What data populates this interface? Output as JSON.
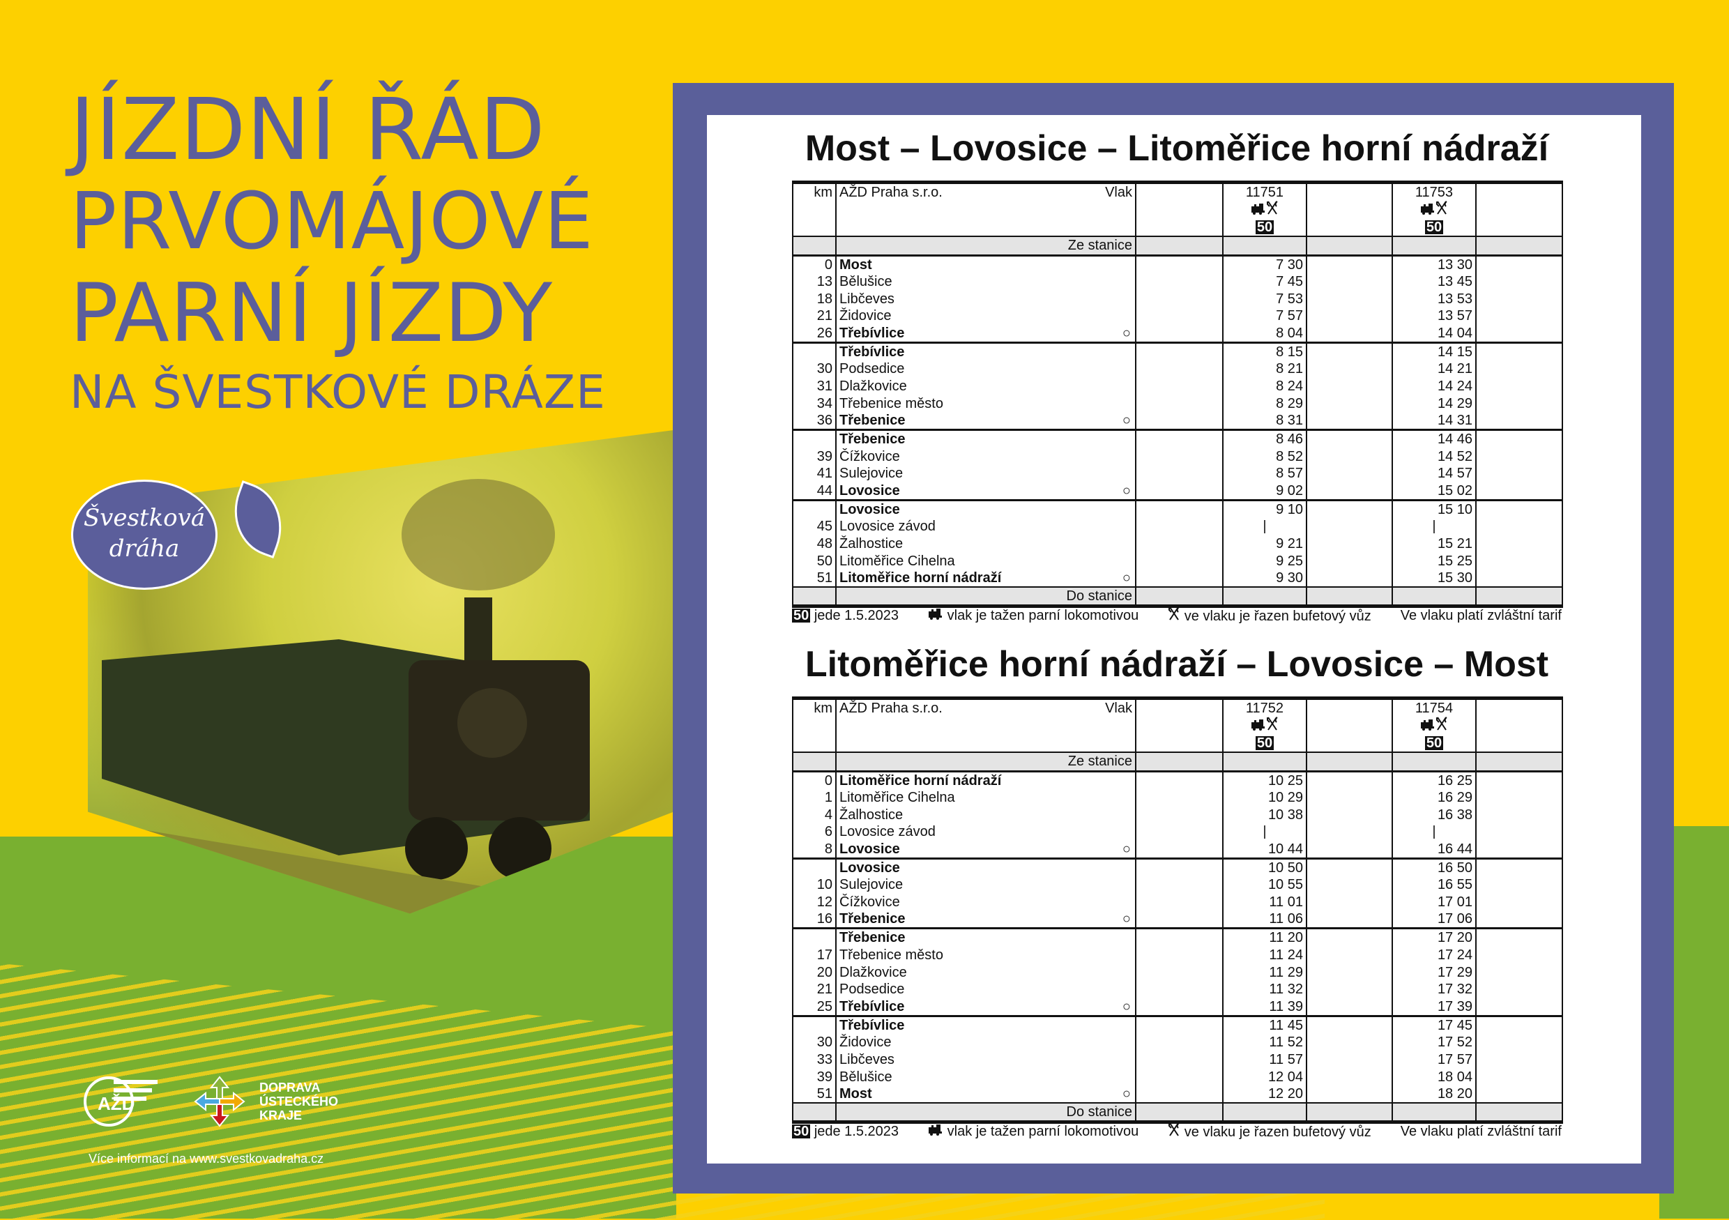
{
  "poster": {
    "title_lines": [
      "JÍZDNÍ ŘÁD",
      "PRVOMÁJOVÉ",
      "PARNÍ JÍZDY"
    ],
    "subtitle": "NA ŠVESTKOVÉ DRÁZE",
    "logo_text": "Švestková dráha",
    "azd_logo": "AŽD",
    "dus_logo": [
      "DOPRAVA",
      "ÚSTECKÉHO",
      "KRAJE"
    ],
    "web": "Více informací na www.svestkovadraha.cz",
    "colors": {
      "yellow": "#fdd000",
      "green": "#79b030",
      "purple": "#5a5f9a"
    }
  },
  "legend": {
    "badge": "50",
    "badge_text": "jede 1.5.2023",
    "loco_icon": "steam-locomotive-icon",
    "loco_text": "vlak je tažen parní lokomotivou",
    "buffet_icon": "cutlery-icon",
    "buffet_text": "ve vlaku je řazen bufetový vůz",
    "tariff": "Ve vlaku platí zvláštní tarif"
  },
  "timetables": [
    {
      "title": "Most – Lovosice – Litoměřice horní nádraží",
      "km": "km",
      "operator": "AŽD Praha s.r.o.",
      "vlak": "Vlak",
      "from": "Ze stanice",
      "to": "Do stanice",
      "trains": [
        {
          "number": "11751",
          "badge": "50"
        },
        {
          "number": "11753",
          "badge": "50"
        }
      ],
      "blocks": [
        [
          [
            "0",
            "Most",
            1,
            "",
            [
              "7 30",
              "13 30"
            ]
          ],
          [
            "13",
            "Bělušice",
            0,
            "",
            [
              "7 45",
              "13 45"
            ]
          ],
          [
            "18",
            "Libčeves",
            0,
            "",
            [
              "7 53",
              "13 53"
            ]
          ],
          [
            "21",
            "Židovice",
            0,
            "",
            [
              "7 57",
              "13 57"
            ]
          ],
          [
            "26",
            "Třebívlice",
            1,
            "○",
            [
              "8 04",
              "14 04"
            ]
          ]
        ],
        [
          [
            "",
            "Třebívlice",
            1,
            "",
            [
              "8 15",
              "14 15"
            ]
          ],
          [
            "30",
            "Podsedice",
            0,
            "",
            [
              "8 21",
              "14 21"
            ]
          ],
          [
            "31",
            "Dlažkovice",
            0,
            "",
            [
              "8 24",
              "14 24"
            ]
          ],
          [
            "34",
            "Třebenice město",
            0,
            "",
            [
              "8 29",
              "14 29"
            ]
          ],
          [
            "36",
            "Třebenice",
            1,
            "○",
            [
              "8 31",
              "14 31"
            ]
          ]
        ],
        [
          [
            "",
            "Třebenice",
            1,
            "",
            [
              "8 46",
              "14 46"
            ]
          ],
          [
            "39",
            "Čížkovice",
            0,
            "",
            [
              "8 52",
              "14 52"
            ]
          ],
          [
            "41",
            "Sulejovice",
            0,
            "",
            [
              "8 57",
              "14 57"
            ]
          ],
          [
            "44",
            "Lovosice",
            1,
            "○",
            [
              "9 02",
              "15 02"
            ]
          ]
        ],
        [
          [
            "",
            "Lovosice",
            1,
            "",
            [
              "9 10",
              "15 10"
            ]
          ],
          [
            "45",
            "Lovosice závod",
            0,
            "",
            [
              "|",
              "|"
            ]
          ],
          [
            "48",
            "Žalhostice",
            0,
            "",
            [
              "9 21",
              "15 21"
            ]
          ],
          [
            "50",
            "Litoměřice Cihelna",
            0,
            "",
            [
              "9 25",
              "15 25"
            ]
          ],
          [
            "51",
            "Litoměřice horní nádraží",
            1,
            "○",
            [
              "9 30",
              "15 30"
            ]
          ]
        ]
      ]
    },
    {
      "title": "Litoměřice horní nádraží – Lovosice – Most",
      "km": "km",
      "operator": "AŽD Praha s.r.o.",
      "vlak": "Vlak",
      "from": "Ze stanice",
      "to": "Do stanice",
      "trains": [
        {
          "number": "11752",
          "badge": "50"
        },
        {
          "number": "11754",
          "badge": "50"
        }
      ],
      "blocks": [
        [
          [
            "0",
            "Litoměřice horní nádraží",
            1,
            "",
            [
              "10 25",
              "16 25"
            ]
          ],
          [
            "1",
            "Litoměřice Cihelna",
            0,
            "",
            [
              "10 29",
              "16 29"
            ]
          ],
          [
            "4",
            "Žalhostice",
            0,
            "",
            [
              "10 38",
              "16 38"
            ]
          ],
          [
            "6",
            "Lovosice závod",
            0,
            "",
            [
              "|",
              "|"
            ]
          ],
          [
            "8",
            "Lovosice",
            1,
            "○",
            [
              "10 44",
              "16 44"
            ]
          ]
        ],
        [
          [
            "",
            "Lovosice",
            1,
            "",
            [
              "10 50",
              "16 50"
            ]
          ],
          [
            "10",
            "Sulejovice",
            0,
            "",
            [
              "10 55",
              "16 55"
            ]
          ],
          [
            "12",
            "Čížkovice",
            0,
            "",
            [
              "11 01",
              "17 01"
            ]
          ],
          [
            "16",
            "Třebenice",
            1,
            "○",
            [
              "11 06",
              "17 06"
            ]
          ]
        ],
        [
          [
            "",
            "Třebenice",
            1,
            "",
            [
              "11 20",
              "17 20"
            ]
          ],
          [
            "17",
            "Třebenice město",
            0,
            "",
            [
              "11 24",
              "17 24"
            ]
          ],
          [
            "20",
            "Dlažkovice",
            0,
            "",
            [
              "11 29",
              "17 29"
            ]
          ],
          [
            "21",
            "Podsedice",
            0,
            "",
            [
              "11 32",
              "17 32"
            ]
          ],
          [
            "25",
            "Třebívlice",
            1,
            "○",
            [
              "11 39",
              "17 39"
            ]
          ]
        ],
        [
          [
            "",
            "Třebívlice",
            1,
            "",
            [
              "11 45",
              "17 45"
            ]
          ],
          [
            "30",
            "Židovice",
            0,
            "",
            [
              "11 52",
              "17 52"
            ]
          ],
          [
            "33",
            "Libčeves",
            0,
            "",
            [
              "11 57",
              "17 57"
            ]
          ],
          [
            "39",
            "Bělušice",
            0,
            "",
            [
              "12 04",
              "18 04"
            ]
          ],
          [
            "51",
            "Most",
            1,
            "○",
            [
              "12 20",
              "18 20"
            ]
          ]
        ]
      ]
    }
  ]
}
